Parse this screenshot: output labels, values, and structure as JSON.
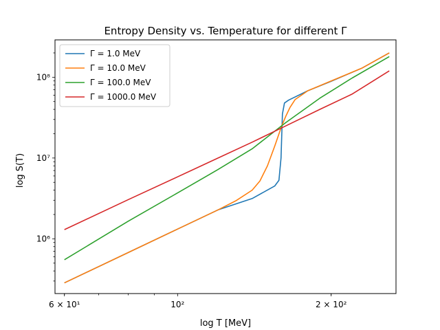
{
  "chart_data": {
    "type": "line",
    "title": "Entropy Density vs. Temperature for different Γ",
    "xlabel": "log T [MeV]",
    "ylabel": "log S(T)",
    "xscale": "log",
    "yscale": "log",
    "xlim": [
      57.5,
      268
    ],
    "ylim": [
      210000,
      290000000
    ],
    "legend_position": "upper-left",
    "grid": false,
    "x_ticks": [
      {
        "value": 60,
        "label": "6 × 10¹"
      },
      {
        "value": 100,
        "label": "10²"
      },
      {
        "value": 200,
        "label": "2 × 10²"
      }
    ],
    "y_ticks": [
      {
        "value": 1000000,
        "label": "10⁶"
      },
      {
        "value": 10000000,
        "label": "10⁷"
      },
      {
        "value": 100000000,
        "label": "10⁸"
      }
    ],
    "series": [
      {
        "name": "Γ = 1.0 MeV",
        "color": "#1f77b4",
        "x": [
          60,
          80,
          100,
          120,
          140,
          155,
          158,
          159.5,
          160.5,
          162,
          165,
          180,
          200,
          230,
          260
        ],
        "y": [
          285000,
          675000,
          1320000,
          2280000,
          3150000,
          4500000,
          5300000,
          10000000,
          35000000,
          48000000,
          52000000,
          68000000,
          89000000,
          130000000,
          200000000
        ]
      },
      {
        "name": "Γ = 10.0 MeV",
        "color": "#ff7f0e",
        "x": [
          60,
          80,
          100,
          120,
          130,
          140,
          145,
          150,
          155,
          160,
          163,
          166,
          170,
          180,
          200,
          230,
          260
        ],
        "y": [
          285000,
          675000,
          1320000,
          2280000,
          2950000,
          4000000,
          5200000,
          8000000,
          14000000,
          25000000,
          33000000,
          42000000,
          53000000,
          68000000,
          90000000,
          130000000,
          200000000
        ]
      },
      {
        "name": "Γ = 100.0 MeV",
        "color": "#2ca02c",
        "x": [
          60,
          80,
          100,
          120,
          140,
          163,
          190,
          220,
          260
        ],
        "y": [
          550000,
          1650000,
          3700000,
          7200000,
          13000000,
          27500000,
          55000000,
          98000000,
          180000000
        ]
      },
      {
        "name": "Γ = 1000.0 MeV",
        "color": "#d62728",
        "x": [
          60,
          80,
          100,
          120,
          140,
          163,
          190,
          220,
          260
        ],
        "y": [
          1300000,
          3050000,
          5850000,
          10000000,
          15700000,
          25000000,
          40000000,
          62000000,
          120000000
        ]
      }
    ]
  }
}
